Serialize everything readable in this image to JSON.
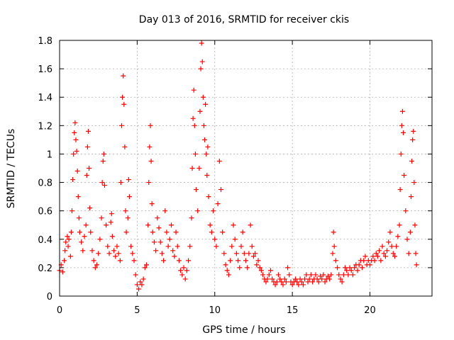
{
  "chart_data": {
    "type": "scatter",
    "title": "Day 013 of 2016, SRMTID for receiver ckis",
    "xlabel": "GPS time / hours",
    "ylabel": "SRMTID / TECUs",
    "xlim": [
      0,
      24
    ],
    "ylim": [
      0,
      1.8
    ],
    "x_ticks": [
      0,
      5,
      10,
      15,
      20
    ],
    "x_tick_labels": [
      "0",
      "5",
      "10",
      "15",
      "20"
    ],
    "y_ticks": [
      0,
      0.2,
      0.4,
      0.6,
      0.8,
      1,
      1.2,
      1.4,
      1.6,
      1.8
    ],
    "y_tick_labels": [
      "0",
      "0.2",
      "0.4",
      "0.6",
      "0.8",
      "1",
      "1.2",
      "1.4",
      "1.6",
      "1.8"
    ],
    "grid": true,
    "marker": "plus",
    "series": [
      {
        "name": "SRMTID",
        "color": "#ff0000",
        "points": [
          [
            0.0,
            0.18
          ],
          [
            0.1,
            0.22
          ],
          [
            0.2,
            0.17
          ],
          [
            0.3,
            0.25
          ],
          [
            0.35,
            0.32
          ],
          [
            0.4,
            0.38
          ],
          [
            0.5,
            0.42
          ],
          [
            0.55,
            0.35
          ],
          [
            0.6,
            0.4
          ],
          [
            0.7,
            0.28
          ],
          [
            0.75,
            0.45
          ],
          [
            0.8,
            0.6
          ],
          [
            0.85,
            0.82
          ],
          [
            0.9,
            1.0
          ],
          [
            0.95,
            1.15
          ],
          [
            1.0,
            1.22
          ],
          [
            1.05,
            1.1
          ],
          [
            1.1,
            1.02
          ],
          [
            1.15,
            0.88
          ],
          [
            1.2,
            0.7
          ],
          [
            1.25,
            0.55
          ],
          [
            1.3,
            0.45
          ],
          [
            1.4,
            0.38
          ],
          [
            1.5,
            0.32
          ],
          [
            1.6,
            0.42
          ],
          [
            1.7,
            0.5
          ],
          [
            1.75,
            0.85
          ],
          [
            1.8,
            1.05
          ],
          [
            1.85,
            1.16
          ],
          [
            1.9,
            0.9
          ],
          [
            1.95,
            0.62
          ],
          [
            2.0,
            0.45
          ],
          [
            2.1,
            0.32
          ],
          [
            2.2,
            0.25
          ],
          [
            2.3,
            0.2
          ],
          [
            2.4,
            0.22
          ],
          [
            2.5,
            0.3
          ],
          [
            2.6,
            0.4
          ],
          [
            2.7,
            0.55
          ],
          [
            2.75,
            0.8
          ],
          [
            2.8,
            0.95
          ],
          [
            2.85,
            1.0
          ],
          [
            2.9,
            0.78
          ],
          [
            3.0,
            0.5
          ],
          [
            3.1,
            0.35
          ],
          [
            3.2,
            0.3
          ],
          [
            3.3,
            0.52
          ],
          [
            3.35,
            0.58
          ],
          [
            3.4,
            0.42
          ],
          [
            3.5,
            0.32
          ],
          [
            3.6,
            0.28
          ],
          [
            3.7,
            0.35
          ],
          [
            3.8,
            0.3
          ],
          [
            3.9,
            0.25
          ],
          [
            3.95,
            0.8
          ],
          [
            4.0,
            1.2
          ],
          [
            4.05,
            1.4
          ],
          [
            4.1,
            1.55
          ],
          [
            4.15,
            1.35
          ],
          [
            4.2,
            1.05
          ],
          [
            4.25,
            0.6
          ],
          [
            4.3,
            0.45
          ],
          [
            4.4,
            0.55
          ],
          [
            4.45,
            0.82
          ],
          [
            4.5,
            0.7
          ],
          [
            4.6,
            0.35
          ],
          [
            4.7,
            0.3
          ],
          [
            4.8,
            0.25
          ],
          [
            4.9,
            0.15
          ],
          [
            5.0,
            0.08
          ],
          [
            5.1,
            0.05
          ],
          [
            5.2,
            0.1
          ],
          [
            5.3,
            0.08
          ],
          [
            5.4,
            0.12
          ],
          [
            5.5,
            0.2
          ],
          [
            5.6,
            0.22
          ],
          [
            5.7,
            0.5
          ],
          [
            5.75,
            0.8
          ],
          [
            5.8,
            1.05
          ],
          [
            5.85,
            1.2
          ],
          [
            5.9,
            0.95
          ],
          [
            5.95,
            0.65
          ],
          [
            6.0,
            0.45
          ],
          [
            6.1,
            0.38
          ],
          [
            6.2,
            0.32
          ],
          [
            6.3,
            0.55
          ],
          [
            6.4,
            0.48
          ],
          [
            6.5,
            0.38
          ],
          [
            6.6,
            0.3
          ],
          [
            6.7,
            0.25
          ],
          [
            6.8,
            0.6
          ],
          [
            6.9,
            0.45
          ],
          [
            7.0,
            0.35
          ],
          [
            7.1,
            0.4
          ],
          [
            7.2,
            0.5
          ],
          [
            7.3,
            0.32
          ],
          [
            7.4,
            0.28
          ],
          [
            7.5,
            0.45
          ],
          [
            7.6,
            0.35
          ],
          [
            7.7,
            0.25
          ],
          [
            7.8,
            0.18
          ],
          [
            7.9,
            0.15
          ],
          [
            8.0,
            0.2
          ],
          [
            8.1,
            0.12
          ],
          [
            8.2,
            0.18
          ],
          [
            8.3,
            0.25
          ],
          [
            8.4,
            0.35
          ],
          [
            8.5,
            0.55
          ],
          [
            8.55,
            0.9
          ],
          [
            8.6,
            1.25
          ],
          [
            8.65,
            1.45
          ],
          [
            8.7,
            1.2
          ],
          [
            8.75,
            1.0
          ],
          [
            8.8,
            0.75
          ],
          [
            8.9,
            0.6
          ],
          [
            9.0,
            0.9
          ],
          [
            9.05,
            1.3
          ],
          [
            9.1,
            1.6
          ],
          [
            9.15,
            1.78
          ],
          [
            9.2,
            1.65
          ],
          [
            9.25,
            1.4
          ],
          [
            9.3,
            1.2
          ],
          [
            9.35,
            1.1
          ],
          [
            9.4,
            1.35
          ],
          [
            9.45,
            1.0
          ],
          [
            9.5,
            0.85
          ],
          [
            9.55,
            1.05
          ],
          [
            9.6,
            0.7
          ],
          [
            9.7,
            0.5
          ],
          [
            9.8,
            0.45
          ],
          [
            9.9,
            0.6
          ],
          [
            10.0,
            0.4
          ],
          [
            10.1,
            0.35
          ],
          [
            10.2,
            0.65
          ],
          [
            10.3,
            0.95
          ],
          [
            10.4,
            0.75
          ],
          [
            10.5,
            0.45
          ],
          [
            10.6,
            0.3
          ],
          [
            10.7,
            0.22
          ],
          [
            10.8,
            0.18
          ],
          [
            10.9,
            0.15
          ],
          [
            11.0,
            0.25
          ],
          [
            11.1,
            0.35
          ],
          [
            11.2,
            0.5
          ],
          [
            11.3,
            0.4
          ],
          [
            11.4,
            0.3
          ],
          [
            11.5,
            0.25
          ],
          [
            11.6,
            0.2
          ],
          [
            11.7,
            0.35
          ],
          [
            11.8,
            0.45
          ],
          [
            11.9,
            0.3
          ],
          [
            12.0,
            0.25
          ],
          [
            12.1,
            0.2
          ],
          [
            12.2,
            0.3
          ],
          [
            12.3,
            0.5
          ],
          [
            12.4,
            0.35
          ],
          [
            12.5,
            0.28
          ],
          [
            12.6,
            0.3
          ],
          [
            12.7,
            0.22
          ],
          [
            12.8,
            0.25
          ],
          [
            12.9,
            0.2
          ],
          [
            13.0,
            0.18
          ],
          [
            13.1,
            0.15
          ],
          [
            13.2,
            0.12
          ],
          [
            13.3,
            0.1
          ],
          [
            13.4,
            0.12
          ],
          [
            13.5,
            0.15
          ],
          [
            13.6,
            0.18
          ],
          [
            13.7,
            0.12
          ],
          [
            13.8,
            0.1
          ],
          [
            13.9,
            0.08
          ],
          [
            14.0,
            0.1
          ],
          [
            14.1,
            0.15
          ],
          [
            14.2,
            0.12
          ],
          [
            14.3,
            0.1
          ],
          [
            14.4,
            0.08
          ],
          [
            14.5,
            0.12
          ],
          [
            14.6,
            0.1
          ],
          [
            14.7,
            0.2
          ],
          [
            14.8,
            0.15
          ],
          [
            14.9,
            0.1
          ],
          [
            15.0,
            0.08
          ],
          [
            15.1,
            0.1
          ],
          [
            15.2,
            0.12
          ],
          [
            15.3,
            0.1
          ],
          [
            15.4,
            0.08
          ],
          [
            15.5,
            0.12
          ],
          [
            15.6,
            0.1
          ],
          [
            15.7,
            0.08
          ],
          [
            15.8,
            0.12
          ],
          [
            15.9,
            0.15
          ],
          [
            16.0,
            0.1
          ],
          [
            16.1,
            0.12
          ],
          [
            16.2,
            0.15
          ],
          [
            16.3,
            0.1
          ],
          [
            16.4,
            0.12
          ],
          [
            16.5,
            0.15
          ],
          [
            16.6,
            0.12
          ],
          [
            16.7,
            0.1
          ],
          [
            16.8,
            0.14
          ],
          [
            16.9,
            0.12
          ],
          [
            17.0,
            0.15
          ],
          [
            17.1,
            0.1
          ],
          [
            17.2,
            0.12
          ],
          [
            17.3,
            0.14
          ],
          [
            17.4,
            0.12
          ],
          [
            17.5,
            0.15
          ],
          [
            17.6,
            0.3
          ],
          [
            17.65,
            0.45
          ],
          [
            17.7,
            0.35
          ],
          [
            17.8,
            0.25
          ],
          [
            17.9,
            0.2
          ],
          [
            18.0,
            0.15
          ],
          [
            18.1,
            0.12
          ],
          [
            18.2,
            0.1
          ],
          [
            18.3,
            0.15
          ],
          [
            18.4,
            0.2
          ],
          [
            18.5,
            0.18
          ],
          [
            18.6,
            0.15
          ],
          [
            18.7,
            0.2
          ],
          [
            18.8,
            0.18
          ],
          [
            18.9,
            0.15
          ],
          [
            19.0,
            0.2
          ],
          [
            19.1,
            0.22
          ],
          [
            19.2,
            0.18
          ],
          [
            19.3,
            0.22
          ],
          [
            19.4,
            0.25
          ],
          [
            19.5,
            0.2
          ],
          [
            19.6,
            0.25
          ],
          [
            19.7,
            0.28
          ],
          [
            19.8,
            0.22
          ],
          [
            19.9,
            0.25
          ],
          [
            20.0,
            0.22
          ],
          [
            20.1,
            0.25
          ],
          [
            20.2,
            0.28
          ],
          [
            20.3,
            0.25
          ],
          [
            20.4,
            0.3
          ],
          [
            20.5,
            0.28
          ],
          [
            20.6,
            0.32
          ],
          [
            20.7,
            0.25
          ],
          [
            20.8,
            0.35
          ],
          [
            20.9,
            0.3
          ],
          [
            21.0,
            0.28
          ],
          [
            21.1,
            0.32
          ],
          [
            21.2,
            0.38
          ],
          [
            21.3,
            0.45
          ],
          [
            21.4,
            0.35
          ],
          [
            21.5,
            0.3
          ],
          [
            21.6,
            0.28
          ],
          [
            21.7,
            0.35
          ],
          [
            21.8,
            0.42
          ],
          [
            21.9,
            0.5
          ],
          [
            21.95,
            0.75
          ],
          [
            22.0,
            1.0
          ],
          [
            22.05,
            1.2
          ],
          [
            22.1,
            1.3
          ],
          [
            22.15,
            1.15
          ],
          [
            22.2,
            0.85
          ],
          [
            22.3,
            0.6
          ],
          [
            22.4,
            0.4
          ],
          [
            22.5,
            0.3
          ],
          [
            22.6,
            0.45
          ],
          [
            22.65,
            0.7
          ],
          [
            22.7,
            0.95
          ],
          [
            22.75,
            1.1
          ],
          [
            22.8,
            1.16
          ],
          [
            22.85,
            0.8
          ],
          [
            22.9,
            0.5
          ],
          [
            22.95,
            0.3
          ],
          [
            23.0,
            0.22
          ]
        ]
      }
    ]
  }
}
